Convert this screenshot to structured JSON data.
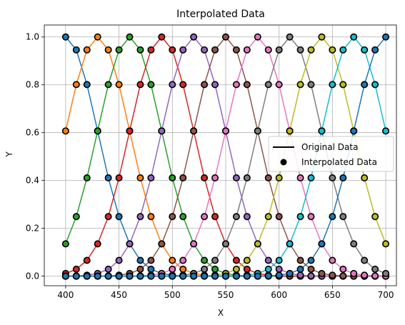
{
  "chart_data": {
    "type": "line",
    "title": "Interpolated Data",
    "xlabel": "X",
    "ylabel": "Y",
    "xlim": [
      380,
      710
    ],
    "ylim": [
      -0.04,
      1.05
    ],
    "xticks": [
      400,
      450,
      500,
      550,
      600,
      650,
      700
    ],
    "yticks": [
      0.0,
      0.2,
      0.4,
      0.6,
      0.8,
      1.0
    ],
    "xtick_labels": [
      "400",
      "450",
      "500",
      "550",
      "600",
      "650",
      "700"
    ],
    "ytick_labels": [
      "0.0",
      "0.2",
      "0.4",
      "0.6",
      "0.8",
      "1.0"
    ],
    "grid": true,
    "legend": {
      "position": "center-right",
      "entries": [
        {
          "label": "Original Data",
          "kind": "line"
        },
        {
          "label": "Interpolated Data",
          "kind": "marker"
        }
      ]
    },
    "x": [
      400,
      410,
      420,
      430,
      440,
      450,
      460,
      470,
      480,
      490,
      500,
      510,
      520,
      530,
      540,
      550,
      560,
      570,
      580,
      590,
      600,
      610,
      620,
      630,
      640,
      650,
      660,
      670,
      680,
      690,
      700
    ],
    "series": [
      {
        "color": "#1f77b4",
        "values": [
          1.0,
          0.946,
          0.801,
          0.607,
          0.411,
          0.249,
          0.135,
          0.066,
          0.029,
          0.011,
          0.004,
          0.001,
          0.0,
          0.0,
          0.0,
          0.0,
          0.0,
          0.0,
          0.0,
          0.0,
          0.0,
          0.0,
          0.0,
          0.0,
          0.0,
          0.0,
          0.0,
          0.0,
          0.0,
          0.0,
          0.0
        ]
      },
      {
        "color": "#ff7f0e",
        "values": [
          0.607,
          0.801,
          0.946,
          1.0,
          0.946,
          0.801,
          0.607,
          0.411,
          0.249,
          0.135,
          0.066,
          0.029,
          0.011,
          0.004,
          0.001,
          0.0,
          0.0,
          0.0,
          0.0,
          0.0,
          0.0,
          0.0,
          0.0,
          0.0,
          0.0,
          0.0,
          0.0,
          0.0,
          0.0,
          0.0,
          0.0
        ]
      },
      {
        "color": "#2ca02c",
        "values": [
          0.135,
          0.249,
          0.411,
          0.607,
          0.801,
          0.946,
          1.0,
          0.946,
          0.801,
          0.607,
          0.411,
          0.249,
          0.135,
          0.066,
          0.029,
          0.011,
          0.004,
          0.001,
          0.0,
          0.0,
          0.0,
          0.0,
          0.0,
          0.0,
          0.0,
          0.0,
          0.0,
          0.0,
          0.0,
          0.0,
          0.0
        ]
      },
      {
        "color": "#d62728",
        "values": [
          0.011,
          0.029,
          0.066,
          0.135,
          0.249,
          0.411,
          0.607,
          0.801,
          0.946,
          1.0,
          0.946,
          0.801,
          0.607,
          0.411,
          0.249,
          0.135,
          0.066,
          0.029,
          0.011,
          0.004,
          0.001,
          0.0,
          0.0,
          0.0,
          0.0,
          0.0,
          0.0,
          0.0,
          0.0,
          0.0,
          0.0
        ]
      },
      {
        "color": "#9467bd",
        "values": [
          0.0,
          0.001,
          0.004,
          0.011,
          0.029,
          0.066,
          0.135,
          0.249,
          0.411,
          0.607,
          0.801,
          0.946,
          1.0,
          0.946,
          0.801,
          0.607,
          0.411,
          0.249,
          0.135,
          0.066,
          0.029,
          0.011,
          0.004,
          0.001,
          0.0,
          0.0,
          0.0,
          0.0,
          0.0,
          0.0,
          0.0
        ]
      },
      {
        "color": "#8c564b",
        "values": [
          0.0,
          0.0,
          0.0,
          0.0,
          0.001,
          0.004,
          0.011,
          0.029,
          0.066,
          0.135,
          0.249,
          0.411,
          0.607,
          0.801,
          0.946,
          1.0,
          0.946,
          0.801,
          0.607,
          0.411,
          0.249,
          0.135,
          0.066,
          0.029,
          0.011,
          0.004,
          0.001,
          0.0,
          0.0,
          0.0,
          0.0
        ]
      },
      {
        "color": "#e377c2",
        "values": [
          0.0,
          0.0,
          0.0,
          0.0,
          0.0,
          0.0,
          0.0,
          0.001,
          0.004,
          0.011,
          0.029,
          0.066,
          0.135,
          0.249,
          0.411,
          0.607,
          0.801,
          0.946,
          1.0,
          0.946,
          0.801,
          0.607,
          0.411,
          0.249,
          0.135,
          0.066,
          0.029,
          0.011,
          0.004,
          0.001,
          0.0
        ]
      },
      {
        "color": "#7f7f7f",
        "values": [
          0.0,
          0.0,
          0.0,
          0.0,
          0.0,
          0.0,
          0.0,
          0.0,
          0.0,
          0.0,
          0.001,
          0.004,
          0.011,
          0.029,
          0.066,
          0.135,
          0.249,
          0.411,
          0.607,
          0.801,
          0.946,
          1.0,
          0.946,
          0.801,
          0.607,
          0.411,
          0.249,
          0.135,
          0.066,
          0.029,
          0.011
        ]
      },
      {
        "color": "#bcbd22",
        "values": [
          0.0,
          0.0,
          0.0,
          0.0,
          0.0,
          0.0,
          0.0,
          0.0,
          0.0,
          0.0,
          0.0,
          0.0,
          0.0,
          0.001,
          0.004,
          0.011,
          0.029,
          0.066,
          0.135,
          0.249,
          0.411,
          0.607,
          0.801,
          0.946,
          1.0,
          0.946,
          0.801,
          0.607,
          0.411,
          0.249,
          0.135
        ]
      },
      {
        "color": "#17becf",
        "values": [
          0.0,
          0.0,
          0.0,
          0.0,
          0.0,
          0.0,
          0.0,
          0.0,
          0.0,
          0.0,
          0.0,
          0.0,
          0.0,
          0.0,
          0.0,
          0.0,
          0.001,
          0.004,
          0.011,
          0.029,
          0.066,
          0.135,
          0.249,
          0.411,
          0.607,
          0.801,
          0.946,
          1.0,
          0.946,
          0.801,
          0.607
        ]
      },
      {
        "color": "#1f77b4",
        "values": [
          0.0,
          0.0,
          0.0,
          0.0,
          0.0,
          0.0,
          0.0,
          0.0,
          0.0,
          0.0,
          0.0,
          0.0,
          0.0,
          0.0,
          0.0,
          0.0,
          0.0,
          0.0,
          0.0,
          0.001,
          0.004,
          0.011,
          0.029,
          0.066,
          0.135,
          0.249,
          0.411,
          0.607,
          0.801,
          0.946,
          1.0
        ]
      }
    ]
  }
}
